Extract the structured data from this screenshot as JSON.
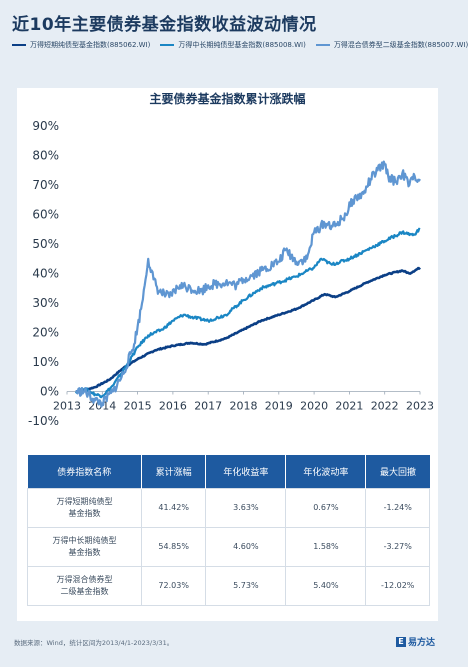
{
  "title": "近10年主要债券基金指数收益波动情况",
  "legend": [
    {
      "label": "万得短期纯债型基金指数(885062.WI)",
      "color": "#0b3f86"
    },
    {
      "label": "万得中长期纯债型基金指数(885008.WI)",
      "color": "#1a86c4"
    },
    {
      "label": "万得混合债券型二级基金指数(885007.WI)",
      "color": "#5f96d2"
    }
  ],
  "chart_data": {
    "type": "line",
    "title": "主要债券基金指数累计涨跌幅",
    "xlim": [
      2013.0,
      2023.0
    ],
    "ylim": [
      -10,
      90
    ],
    "yticks": [
      "90%",
      "80%",
      "70%",
      "60%",
      "50%",
      "40%",
      "30%",
      "20%",
      "10%",
      "0%",
      "-10%"
    ],
    "xticks": [
      "2013",
      "2014",
      "2015",
      "2016",
      "2017",
      "2018",
      "2019",
      "2020",
      "2021",
      "2022",
      "2023"
    ],
    "series": [
      {
        "name": "万得短期纯债型基金指数(885062.WI)",
        "color": "#0b3f86",
        "points": [
          [
            2013.25,
            0
          ],
          [
            2013.5,
            0.5
          ],
          [
            2013.8,
            1.5
          ],
          [
            2014.2,
            4
          ],
          [
            2014.6,
            8
          ],
          [
            2015.0,
            11
          ],
          [
            2015.5,
            14
          ],
          [
            2016.0,
            15.5
          ],
          [
            2016.5,
            16.5
          ],
          [
            2016.9,
            16
          ],
          [
            2017.5,
            18
          ],
          [
            2018.0,
            21
          ],
          [
            2018.5,
            24
          ],
          [
            2019.0,
            26
          ],
          [
            2019.5,
            28
          ],
          [
            2020.0,
            31
          ],
          [
            2020.3,
            33
          ],
          [
            2020.6,
            32
          ],
          [
            2021.0,
            34
          ],
          [
            2021.5,
            37
          ],
          [
            2022.0,
            39.5
          ],
          [
            2022.5,
            41
          ],
          [
            2022.7,
            40
          ],
          [
            2023.0,
            42
          ]
        ]
      },
      {
        "name": "万得中长期纯债型基金指数(885008.WI)",
        "color": "#1a86c4",
        "points": [
          [
            2013.25,
            0
          ],
          [
            2013.5,
            1
          ],
          [
            2013.8,
            -1
          ],
          [
            2014.0,
            -1.5
          ],
          [
            2014.3,
            2
          ],
          [
            2014.7,
            9
          ],
          [
            2015.0,
            15
          ],
          [
            2015.3,
            19
          ],
          [
            2015.7,
            21
          ],
          [
            2016.0,
            24
          ],
          [
            2016.3,
            26
          ],
          [
            2016.6,
            25
          ],
          [
            2017.0,
            24
          ],
          [
            2017.5,
            26
          ],
          [
            2018.0,
            31
          ],
          [
            2018.5,
            35
          ],
          [
            2019.0,
            37
          ],
          [
            2019.5,
            39
          ],
          [
            2020.0,
            42
          ],
          [
            2020.2,
            45
          ],
          [
            2020.5,
            43
          ],
          [
            2021.0,
            45
          ],
          [
            2021.5,
            48
          ],
          [
            2022.0,
            51
          ],
          [
            2022.5,
            54
          ],
          [
            2022.8,
            53
          ],
          [
            2023.0,
            55
          ]
        ]
      },
      {
        "name": "万得混合债券型二级基金指数(885007.WI)",
        "color": "#5f96d2",
        "points": [
          [
            2013.25,
            0
          ],
          [
            2013.5,
            0
          ],
          [
            2013.8,
            -3
          ],
          [
            2014.0,
            -4
          ],
          [
            2014.3,
            0
          ],
          [
            2014.6,
            6
          ],
          [
            2014.9,
            16
          ],
          [
            2015.1,
            28
          ],
          [
            2015.2,
            36
          ],
          [
            2015.3,
            45
          ],
          [
            2015.45,
            38
          ],
          [
            2015.6,
            34
          ],
          [
            2015.9,
            32
          ],
          [
            2016.2,
            36
          ],
          [
            2016.5,
            35
          ],
          [
            2016.8,
            34
          ],
          [
            2017.0,
            36
          ],
          [
            2017.5,
            37
          ],
          [
            2017.8,
            36
          ],
          [
            2018.0,
            38
          ],
          [
            2018.5,
            41
          ],
          [
            2019.0,
            44
          ],
          [
            2019.2,
            48
          ],
          [
            2019.5,
            44
          ],
          [
            2019.8,
            45
          ],
          [
            2020.0,
            54
          ],
          [
            2020.3,
            57
          ],
          [
            2020.6,
            56
          ],
          [
            2020.9,
            60
          ],
          [
            2021.1,
            65
          ],
          [
            2021.4,
            67
          ],
          [
            2021.6,
            72
          ],
          [
            2021.8,
            75
          ],
          [
            2022.0,
            77
          ],
          [
            2022.1,
            73
          ],
          [
            2022.3,
            71
          ],
          [
            2022.5,
            74
          ],
          [
            2022.7,
            70
          ],
          [
            2022.85,
            73
          ],
          [
            2023.0,
            72
          ]
        ]
      }
    ]
  },
  "table": {
    "headers": [
      "债券指数名称",
      "累计涨幅",
      "年化收益率",
      "年化波动率",
      "最大回撤"
    ],
    "rows": [
      {
        "name_line1": "万得短期纯债型",
        "name_line2": "基金指数",
        "cum": "41.42%",
        "ann_ret": "3.63%",
        "ann_vol": "0.67%",
        "mdd": "-1.24%"
      },
      {
        "name_line1": "万得中长期纯债型",
        "name_line2": "基金指数",
        "cum": "54.85%",
        "ann_ret": "4.60%",
        "ann_vol": "1.58%",
        "mdd": "-3.27%"
      },
      {
        "name_line1": "万得混合债券型",
        "name_line2": "二级基金指数",
        "cum": "72.03%",
        "ann_ret": "5.73%",
        "ann_vol": "5.40%",
        "mdd": "-12.02%"
      }
    ]
  },
  "footer": "数据来源：Wind，统计区间为2013/4/1-2023/3/31。",
  "logo": {
    "mark": "E",
    "text": "易方达"
  }
}
